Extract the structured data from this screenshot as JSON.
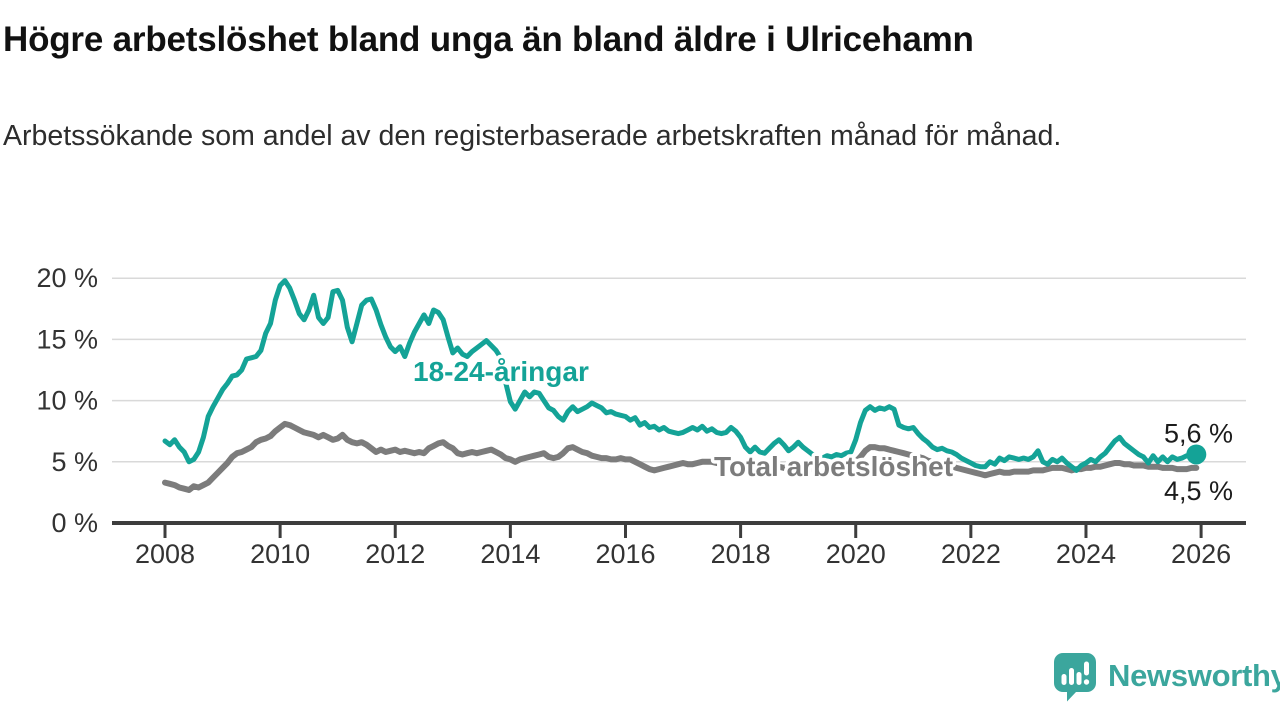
{
  "page": {
    "title": "Högre arbetslöshet bland unga än bland äldre i Ulricehamn",
    "subtitle": "Arbetssökande som andel av den registerbaserade arbetskraften månad för månad."
  },
  "footer": {
    "brand": "Newsworthy"
  },
  "colors": {
    "young_series": "#14a397",
    "total_series": "#7c7c7c",
    "end_label_text": "#1c1c1c",
    "axis": "#3d3d3d",
    "tick_text": "#333333",
    "grid": "#d9d9d9",
    "logo_teal": "#3ba69d",
    "background": "#ffffff"
  },
  "chart_data": {
    "type": "line",
    "title": "Högre arbetslöshet bland unga än bland äldre i Ulricehamn",
    "subtitle": "Arbetssökande som andel av den registerbaserade arbetskraften månad för månad.",
    "x_unit": "month",
    "x_start": "2008-01",
    "x_end": "2025-12",
    "ylim": [
      0,
      21.5
    ],
    "grid": "horizontal",
    "y_ticks": [
      {
        "value": 20,
        "label": "20 %"
      },
      {
        "value": 15,
        "label": "15 %"
      },
      {
        "value": 10,
        "label": "10 %"
      },
      {
        "value": 5,
        "label": "5 %"
      },
      {
        "value": 0,
        "label": "0 %"
      }
    ],
    "x_ticks": [
      {
        "year": 2008,
        "label": "2008"
      },
      {
        "year": 2010,
        "label": "2010"
      },
      {
        "year": 2012,
        "label": "2012"
      },
      {
        "year": 2014,
        "label": "2014"
      },
      {
        "year": 2016,
        "label": "2016"
      },
      {
        "year": 2018,
        "label": "2018"
      },
      {
        "year": 2020,
        "label": "2020"
      },
      {
        "year": 2022,
        "label": "2022"
      },
      {
        "year": 2024,
        "label": "2024"
      },
      {
        "year": 2026,
        "label": "2026"
      }
    ],
    "series": [
      {
        "name": "18-24-åringar",
        "color": "#14a397",
        "end_label": "5,6 %",
        "end_value": 5.6,
        "values": [
          6.7,
          6.4,
          6.8,
          6.2,
          5.8,
          5.0,
          5.2,
          5.8,
          7.0,
          8.7,
          9.5,
          10.2,
          10.9,
          11.4,
          12.0,
          12.1,
          12.5,
          13.4,
          13.5,
          13.6,
          14.1,
          15.5,
          16.3,
          18.2,
          19.4,
          19.8,
          19.2,
          18.2,
          17.1,
          16.6,
          17.4,
          18.6,
          16.8,
          16.3,
          16.8,
          18.9,
          19.0,
          18.2,
          16.0,
          14.8,
          16.3,
          17.8,
          18.2,
          18.3,
          17.4,
          16.2,
          15.2,
          14.4,
          14.0,
          14.4,
          13.6,
          14.7,
          15.6,
          16.3,
          17.0,
          16.3,
          17.4,
          17.2,
          16.6,
          15.2,
          13.9,
          14.3,
          13.8,
          13.6,
          14.0,
          14.3,
          14.6,
          14.9,
          14.5,
          14.1,
          13.5,
          11.5,
          9.9,
          9.3,
          10.0,
          10.7,
          10.3,
          10.7,
          10.6,
          10.0,
          9.4,
          9.2,
          8.7,
          8.4,
          9.1,
          9.5,
          9.1,
          9.3,
          9.5,
          9.8,
          9.6,
          9.4,
          9.0,
          9.1,
          8.9,
          8.8,
          8.7,
          8.4,
          8.6,
          8.0,
          8.2,
          7.8,
          7.9,
          7.6,
          7.8,
          7.5,
          7.4,
          7.3,
          7.4,
          7.6,
          7.8,
          7.6,
          7.9,
          7.5,
          7.7,
          7.4,
          7.3,
          7.4,
          7.8,
          7.5,
          7.0,
          6.2,
          5.8,
          6.2,
          5.8,
          5.7,
          6.1,
          6.5,
          6.8,
          6.4,
          5.9,
          6.2,
          6.6,
          6.2,
          5.9,
          5.6,
          5.4,
          5.3,
          5.5,
          5.4,
          5.6,
          5.5,
          5.7,
          5.8,
          6.8,
          8.2,
          9.2,
          9.5,
          9.2,
          9.4,
          9.3,
          9.5,
          9.3,
          8.0,
          7.8,
          7.7,
          7.8,
          7.3,
          6.9,
          6.6,
          6.2,
          6.0,
          6.1,
          5.9,
          5.8,
          5.6,
          5.3,
          5.1,
          4.9,
          4.7,
          4.6,
          4.6,
          5.0,
          4.8,
          5.3,
          5.1,
          5.4,
          5.3,
          5.2,
          5.3,
          5.2,
          5.4,
          5.9,
          5.0,
          4.8,
          5.2,
          5.0,
          5.3,
          4.9,
          4.6,
          4.3,
          4.7,
          4.9,
          5.2,
          5.0,
          5.4,
          5.7,
          6.2,
          6.7,
          7.0,
          6.5,
          6.2,
          5.9,
          5.6,
          5.4,
          4.9,
          5.5,
          5.0,
          5.4,
          5.0,
          5.4,
          5.2,
          5.3,
          5.5,
          5.4,
          5.6
        ]
      },
      {
        "name": "Total arbetslöshet",
        "color": "#7c7c7c",
        "end_label": "4,5 %",
        "end_value": 4.5,
        "values": [
          3.3,
          3.2,
          3.1,
          2.9,
          2.8,
          2.7,
          3.0,
          2.9,
          3.1,
          3.3,
          3.7,
          4.1,
          4.5,
          4.9,
          5.4,
          5.7,
          5.8,
          6.0,
          6.2,
          6.6,
          6.8,
          6.9,
          7.1,
          7.5,
          7.8,
          8.1,
          8.0,
          7.8,
          7.6,
          7.4,
          7.3,
          7.2,
          7.0,
          7.2,
          7.0,
          6.8,
          6.9,
          7.2,
          6.8,
          6.6,
          6.5,
          6.6,
          6.4,
          6.1,
          5.8,
          6.0,
          5.8,
          5.9,
          6.0,
          5.8,
          5.9,
          5.8,
          5.7,
          5.8,
          5.7,
          6.1,
          6.3,
          6.5,
          6.6,
          6.3,
          6.1,
          5.7,
          5.6,
          5.7,
          5.8,
          5.7,
          5.8,
          5.9,
          6.0,
          5.8,
          5.6,
          5.3,
          5.2,
          5.0,
          5.2,
          5.3,
          5.4,
          5.5,
          5.6,
          5.7,
          5.4,
          5.3,
          5.4,
          5.7,
          6.1,
          6.2,
          6.0,
          5.8,
          5.7,
          5.5,
          5.4,
          5.3,
          5.3,
          5.2,
          5.2,
          5.3,
          5.2,
          5.2,
          5.0,
          4.8,
          4.6,
          4.4,
          4.3,
          4.4,
          4.5,
          4.6,
          4.7,
          4.8,
          4.9,
          4.8,
          4.8,
          4.9,
          5.0,
          5.0,
          5.0,
          4.9,
          4.9,
          4.8,
          4.8,
          4.8,
          4.7,
          4.6,
          4.6,
          4.5,
          4.5,
          4.4,
          4.5,
          4.5,
          4.6,
          4.5,
          4.6,
          4.6,
          4.6,
          4.5,
          4.4,
          4.4,
          4.3,
          4.3,
          4.4,
          4.4,
          4.5,
          4.5,
          4.6,
          4.7,
          5.0,
          5.4,
          5.9,
          6.2,
          6.2,
          6.1,
          6.1,
          6.0,
          5.9,
          5.8,
          5.7,
          5.6,
          5.5,
          5.4,
          5.3,
          5.1,
          5.0,
          4.9,
          4.8,
          4.7,
          4.6,
          4.5,
          4.4,
          4.3,
          4.2,
          4.1,
          4.0,
          3.9,
          4.0,
          4.1,
          4.2,
          4.1,
          4.1,
          4.2,
          4.2,
          4.2,
          4.2,
          4.3,
          4.3,
          4.3,
          4.4,
          4.5,
          4.5,
          4.5,
          4.4,
          4.3,
          4.4,
          4.4,
          4.5,
          4.5,
          4.6,
          4.6,
          4.7,
          4.8,
          4.9,
          4.9,
          4.8,
          4.8,
          4.7,
          4.7,
          4.7,
          4.6,
          4.6,
          4.6,
          4.5,
          4.5,
          4.5,
          4.4,
          4.4,
          4.4,
          4.5,
          4.5
        ]
      }
    ],
    "legend_position": "inline-labels-on-lines"
  }
}
